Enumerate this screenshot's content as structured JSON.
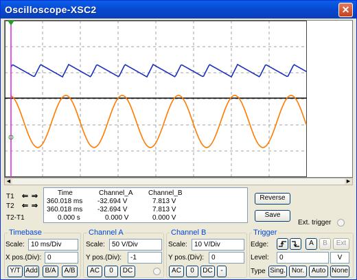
{
  "window": {
    "title": "Oscilloscope-XSC2",
    "close_label": "✕"
  },
  "colors": {
    "channel_a": "#ff7a00",
    "channel_b": "#1b2fb8",
    "cursor": "#e020e0",
    "grid": "#a0a0a0"
  },
  "readout": {
    "headers": {
      "time": "Time",
      "channel_a": "Channel_A",
      "channel_b": "Channel_B"
    },
    "rows": [
      {
        "label": "T1",
        "time": "360.018 ms",
        "a": "-32.694 V",
        "b": "7.813 V"
      },
      {
        "label": "T2",
        "time": "360.018 ms",
        "a": "-32.694 V",
        "b": "7.813 V"
      },
      {
        "label": "T2-T1",
        "time": "0.000 s",
        "a": "0.000 V",
        "b": "0.000 V"
      }
    ],
    "arrow_left": "⇐",
    "arrow_right": "⇒"
  },
  "actions": {
    "reverse": "Reverse",
    "save": "Save",
    "ext_trigger": "Ext. trigger"
  },
  "timebase": {
    "title": "Timebase",
    "scale_label": "Scale:",
    "scale_value": "10 ms/Div",
    "xpos_label": "X pos.(Div):",
    "xpos_value": "0",
    "buttons": [
      "Y/T",
      "Add",
      "B/A",
      "A/B"
    ]
  },
  "channel_a": {
    "title": "Channel A",
    "scale_label": "Scale:",
    "scale_value": "50  V/Div",
    "ypos_label": "Y pos.(Div):",
    "ypos_value": "-1",
    "buttons": [
      "AC",
      "0",
      "DC"
    ]
  },
  "channel_b": {
    "title": "Channel B",
    "scale_label": "Scale:",
    "scale_value": "10  V/Div",
    "ypos_label": "Y pos.(Div):",
    "ypos_value": "0",
    "buttons": [
      "AC",
      "0",
      "DC",
      "-"
    ]
  },
  "trigger": {
    "title": "Trigger",
    "edge_label": "Edge:",
    "edge_buttons": [
      "A",
      "B",
      "Ext"
    ],
    "level_label": "Level:",
    "level_value": "0",
    "level_unit": "V",
    "type_label": "Type",
    "type_buttons": [
      "Sing.",
      "Nor.",
      "Auto",
      "None"
    ]
  }
}
